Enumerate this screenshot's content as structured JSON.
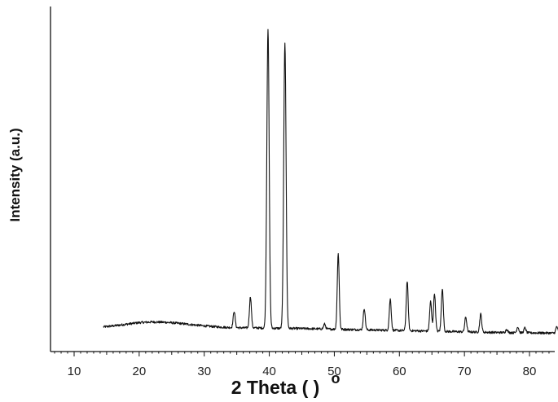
{
  "chart_data": {
    "type": "line",
    "title": "",
    "xlabel": "2 Theta (  )",
    "xlabel_degree": "o",
    "ylabel": "Intensity (a.u.)",
    "xlim": [
      5,
      88
    ],
    "ylim": [
      0,
      100
    ],
    "grid": false,
    "y_tick_labels_shown": false,
    "x_ticks": [
      10,
      20,
      30,
      40,
      50,
      60,
      70,
      80
    ],
    "x_tick_labels": [
      "10",
      "20",
      "30",
      "40",
      "50",
      "60",
      "70",
      "80"
    ],
    "line_color": "#111111",
    "baseline": [
      {
        "x": 14.5,
        "y": 7.5
      },
      {
        "x": 16,
        "y": 7.8
      },
      {
        "x": 18,
        "y": 8.3
      },
      {
        "x": 20,
        "y": 8.8
      },
      {
        "x": 22,
        "y": 9.0
      },
      {
        "x": 24,
        "y": 8.9
      },
      {
        "x": 26,
        "y": 8.6
      },
      {
        "x": 28,
        "y": 8.2
      },
      {
        "x": 30,
        "y": 7.8
      },
      {
        "x": 32,
        "y": 7.5
      },
      {
        "x": 34,
        "y": 7.3
      },
      {
        "x": 36,
        "y": 7.2
      },
      {
        "x": 38,
        "y": 7.2
      },
      {
        "x": 40,
        "y": 7.1
      },
      {
        "x": 45,
        "y": 7.0
      },
      {
        "x": 50,
        "y": 6.8
      },
      {
        "x": 55,
        "y": 6.6
      },
      {
        "x": 60,
        "y": 6.4
      },
      {
        "x": 65,
        "y": 6.2
      },
      {
        "x": 70,
        "y": 6.0
      },
      {
        "x": 75,
        "y": 5.8
      },
      {
        "x": 80,
        "y": 5.7
      },
      {
        "x": 84.5,
        "y": 5.6
      }
    ],
    "peaks": [
      {
        "x": 34.6,
        "height": 5.0,
        "width": 0.15
      },
      {
        "x": 37.1,
        "height": 9.5,
        "width": 0.15
      },
      {
        "x": 39.8,
        "height": 91.0,
        "width": 0.18
      },
      {
        "x": 42.4,
        "height": 87.0,
        "width": 0.18
      },
      {
        "x": 48.5,
        "height": 1.5,
        "width": 0.15
      },
      {
        "x": 50.6,
        "height": 23.0,
        "width": 0.15
      },
      {
        "x": 54.6,
        "height": 6.5,
        "width": 0.15
      },
      {
        "x": 58.6,
        "height": 9.5,
        "width": 0.15
      },
      {
        "x": 61.2,
        "height": 15.0,
        "width": 0.15
      },
      {
        "x": 64.8,
        "height": 9.0,
        "width": 0.15
      },
      {
        "x": 65.4,
        "height": 11.5,
        "width": 0.15
      },
      {
        "x": 66.6,
        "height": 13.0,
        "width": 0.15
      },
      {
        "x": 70.2,
        "height": 4.5,
        "width": 0.15
      },
      {
        "x": 72.5,
        "height": 5.5,
        "width": 0.15
      },
      {
        "x": 76.5,
        "height": 1.0,
        "width": 0.15
      },
      {
        "x": 78.2,
        "height": 1.8,
        "width": 0.15
      },
      {
        "x": 79.3,
        "height": 1.5,
        "width": 0.15
      },
      {
        "x": 84.2,
        "height": 2.0,
        "width": 0.15
      }
    ]
  }
}
